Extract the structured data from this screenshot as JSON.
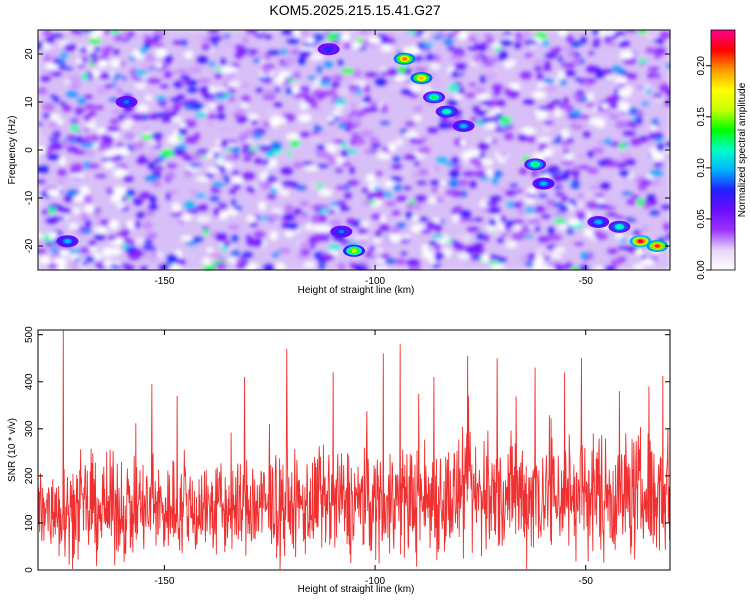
{
  "chart_data": [
    {
      "type": "heatmap",
      "title": "KOM5.2025.215.15.41.G27",
      "xlabel": "Height of straight line (km)",
      "ylabel": "Frequency (Hz)",
      "xlim": [
        -180,
        -30
      ],
      "ylim": [
        -25,
        25
      ],
      "xticks": [
        -150,
        -100,
        -50
      ],
      "yticks": [
        -20,
        -10,
        0,
        10,
        20
      ],
      "colorbar": {
        "label": "Normalized spectral amplitude",
        "range": [
          0,
          0.235
        ],
        "ticks": [
          "0.00",
          "0.05",
          "0.10",
          "0.15",
          "0.20"
        ],
        "colors": [
          "#ffffff",
          "#e8d4f8",
          "#9a33ff",
          "#6a0dff",
          "#2020ff",
          "#00b4ff",
          "#00ffc8",
          "#00ff00",
          "#c8ff00",
          "#ffff00",
          "#ff9900",
          "#ff0000",
          "#ff0090"
        ]
      },
      "hotspots": [
        {
          "x": -93,
          "y": 19,
          "v": 0.2
        },
        {
          "x": -89,
          "y": 15,
          "v": 0.19
        },
        {
          "x": -86,
          "y": 11,
          "v": 0.13
        },
        {
          "x": -83,
          "y": 8,
          "v": 0.12
        },
        {
          "x": -79,
          "y": 5,
          "v": 0.1
        },
        {
          "x": -62,
          "y": -3,
          "v": 0.13
        },
        {
          "x": -60,
          "y": -7,
          "v": 0.1
        },
        {
          "x": -105,
          "y": -21,
          "v": 0.16
        },
        {
          "x": -108,
          "y": -17,
          "v": 0.09
        },
        {
          "x": -42,
          "y": -16,
          "v": 0.12
        },
        {
          "x": -37,
          "y": -19,
          "v": 0.22
        },
        {
          "x": -33,
          "y": -20,
          "v": 0.21
        },
        {
          "x": -47,
          "y": -15,
          "v": 0.1
        },
        {
          "x": -159,
          "y": 10,
          "v": 0.09
        },
        {
          "x": -173,
          "y": -19,
          "v": 0.1
        },
        {
          "x": -111,
          "y": 21,
          "v": 0.08
        }
      ]
    },
    {
      "type": "line",
      "xlabel": "Height of straight line (km)",
      "ylabel": "SNR (10 * v/v)",
      "xlim": [
        -180,
        -30
      ],
      "ylim": [
        0,
        510
      ],
      "xticks": [
        -150,
        -100,
        -50
      ],
      "yticks": [
        0,
        100,
        200,
        300,
        400,
        500
      ],
      "color": "#f03030",
      "samples": 1500,
      "baseline": 130,
      "spread": 75,
      "peaks": [
        {
          "x": -174,
          "y": 510
        },
        {
          "x": -121,
          "y": 470
        },
        {
          "x": -94,
          "y": 480
        },
        {
          "x": -98,
          "y": 460
        },
        {
          "x": -78,
          "y": 455
        },
        {
          "x": -71,
          "y": 450
        },
        {
          "x": -51,
          "y": 450
        },
        {
          "x": -55,
          "y": 420
        },
        {
          "x": -110,
          "y": 420
        },
        {
          "x": -131,
          "y": 410
        },
        {
          "x": -153,
          "y": 395
        },
        {
          "x": -147,
          "y": 370
        },
        {
          "x": -86,
          "y": 410
        },
        {
          "x": -62,
          "y": 430
        },
        {
          "x": -42,
          "y": 380
        },
        {
          "x": -35,
          "y": 390
        }
      ]
    }
  ]
}
